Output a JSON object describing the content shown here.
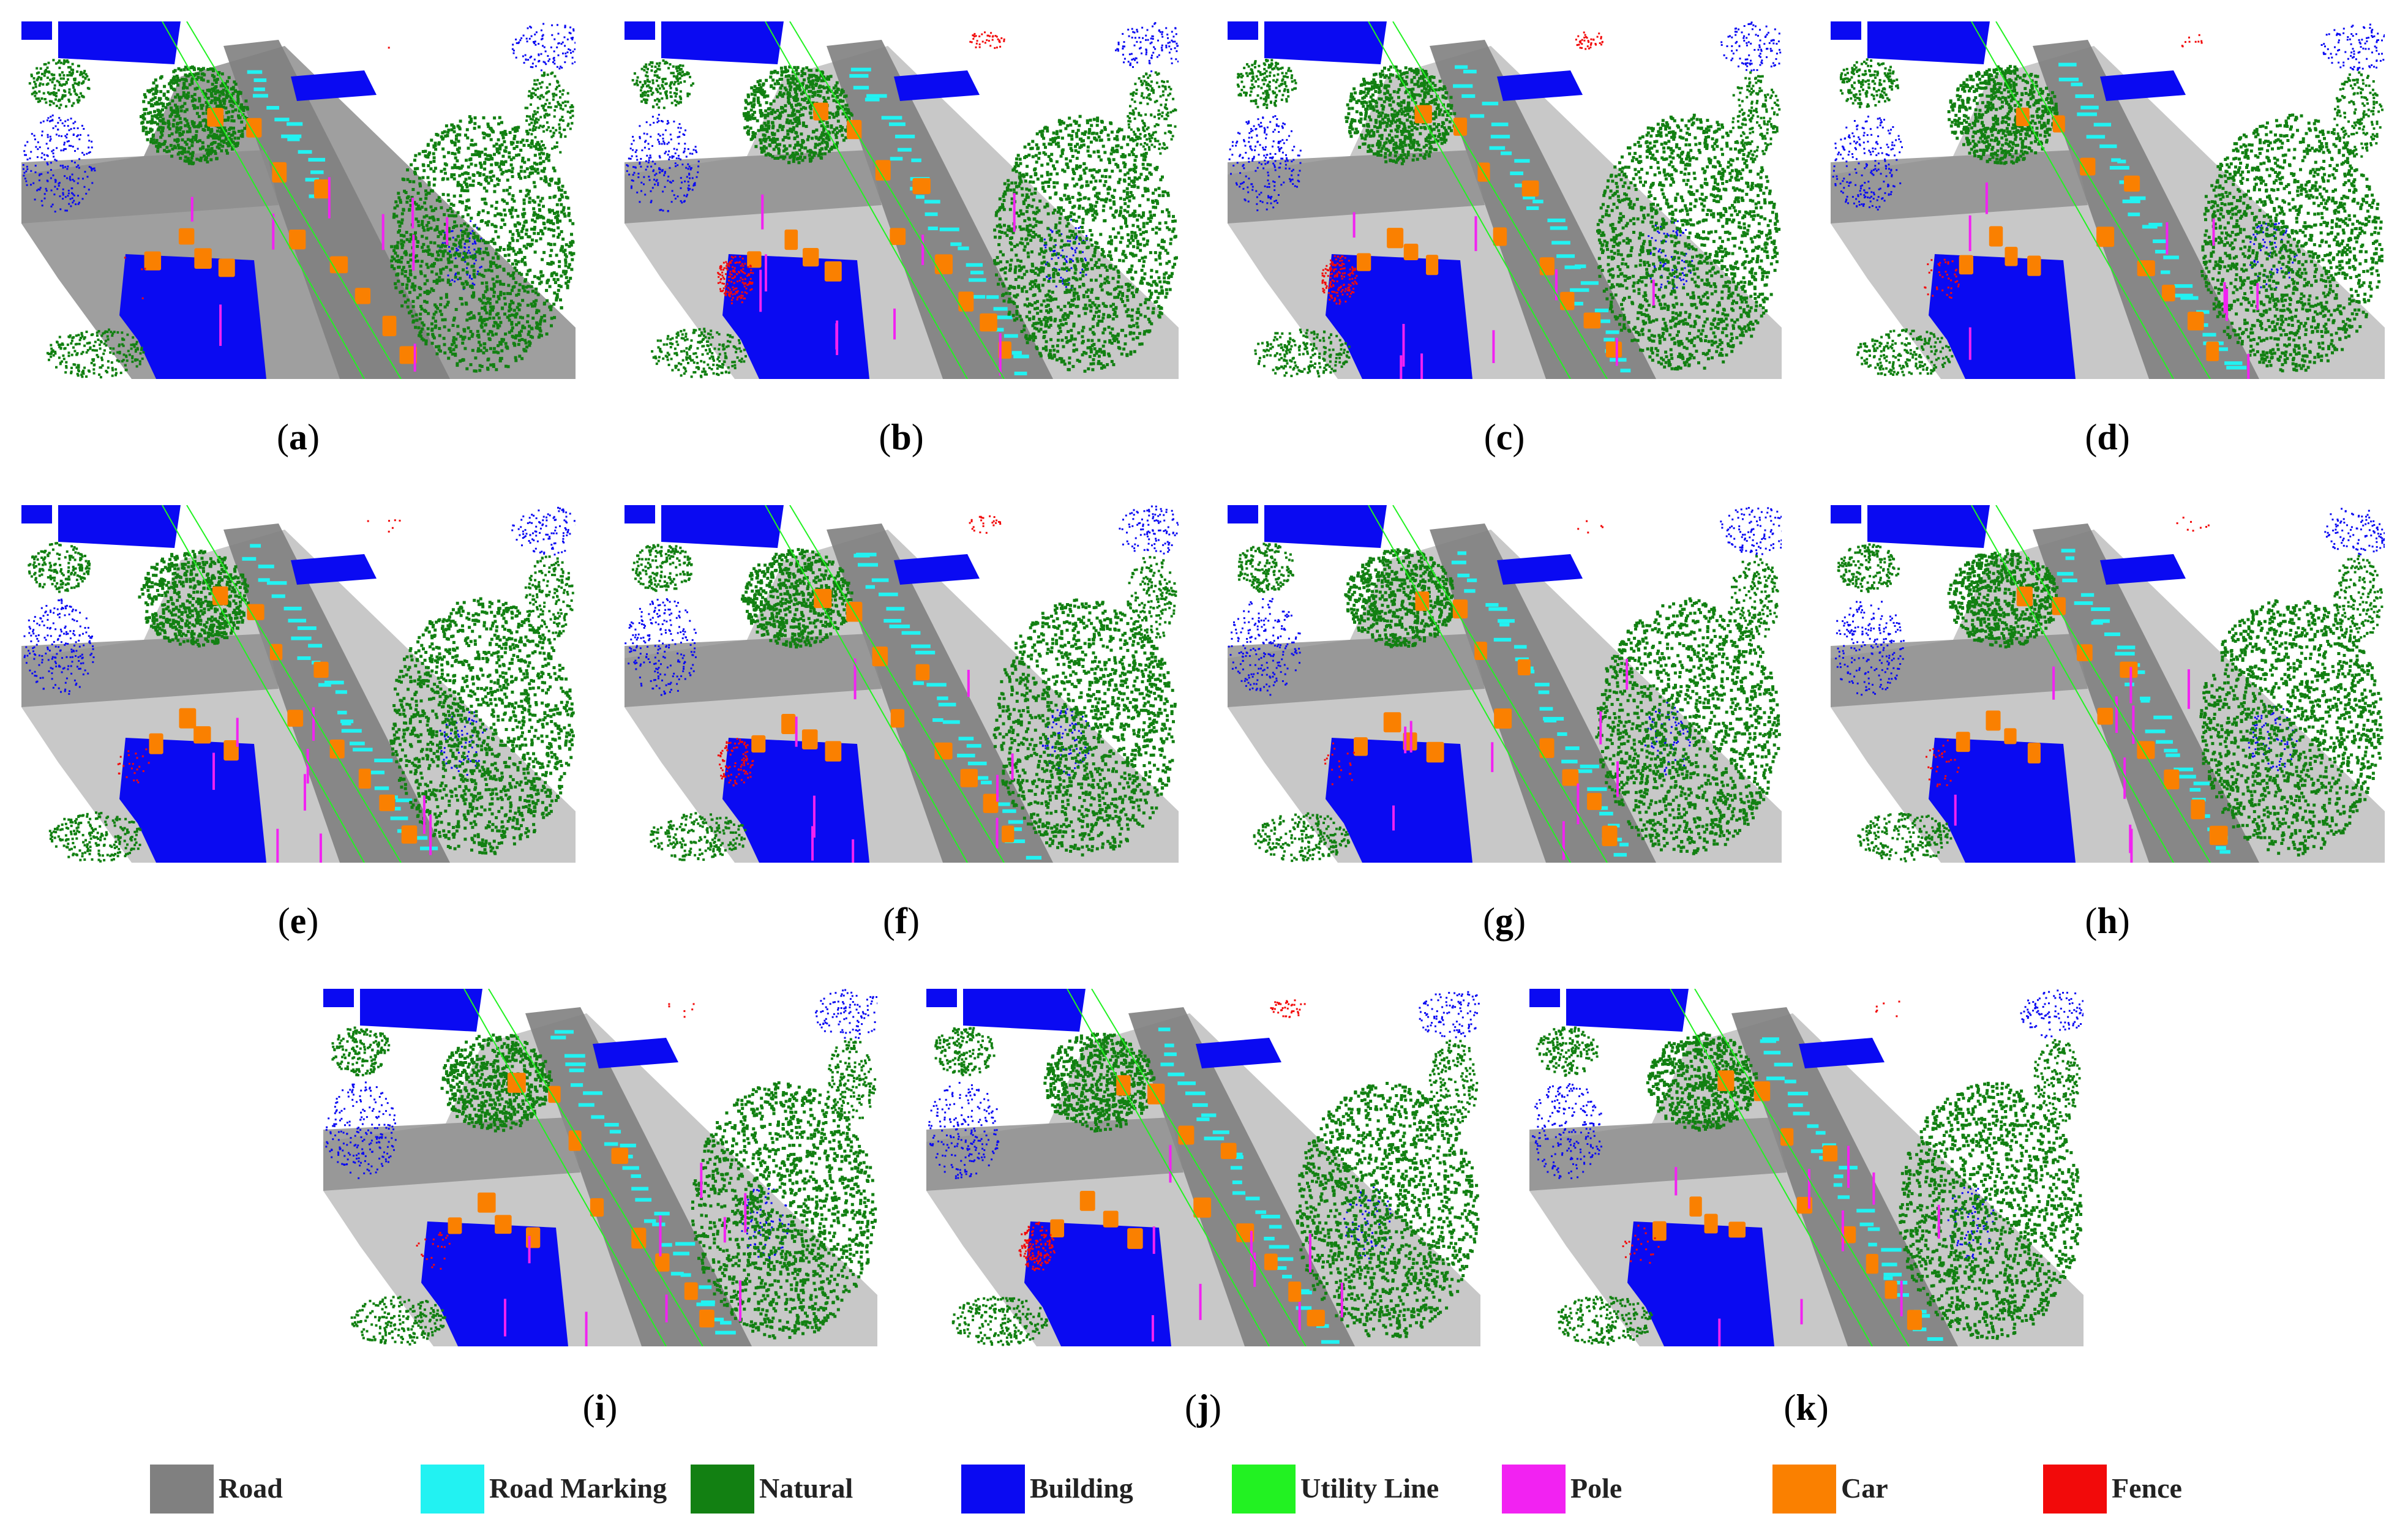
{
  "panels": [
    {
      "id": "a",
      "label": "a"
    },
    {
      "id": "b",
      "label": "b"
    },
    {
      "id": "c",
      "label": "c"
    },
    {
      "id": "d",
      "label": "d"
    },
    {
      "id": "e",
      "label": "e"
    },
    {
      "id": "f",
      "label": "f"
    },
    {
      "id": "g",
      "label": "g"
    },
    {
      "id": "h",
      "label": "h"
    },
    {
      "id": "i",
      "label": "i"
    },
    {
      "id": "j",
      "label": "j"
    },
    {
      "id": "k",
      "label": "k"
    }
  ],
  "legend": [
    {
      "label": "Road",
      "color": "#808080"
    },
    {
      "label": "Road Marking",
      "color": "#22f2f2"
    },
    {
      "label": "Natural",
      "color": "#128012"
    },
    {
      "label": "Building",
      "color": "#0a0af2"
    },
    {
      "label": "Utility Line",
      "color": "#22f222"
    },
    {
      "label": "Pole",
      "color": "#f222f2"
    },
    {
      "label": "Car",
      "color": "#fa8000"
    },
    {
      "label": "Fence",
      "color": "#f20a0a"
    }
  ]
}
